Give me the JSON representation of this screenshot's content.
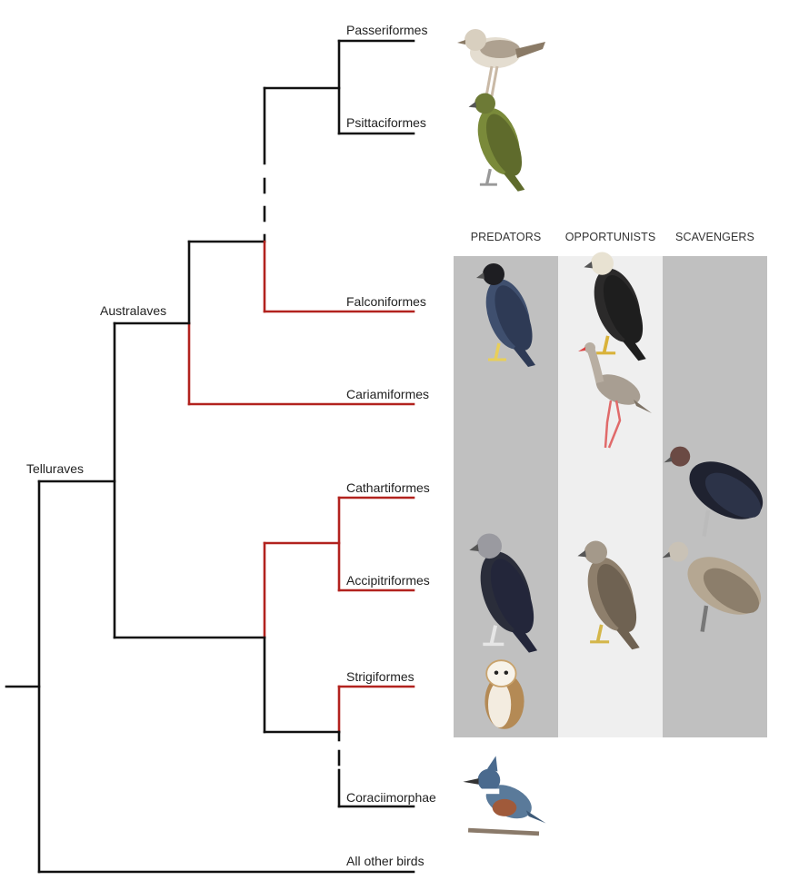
{
  "colors": {
    "default_branch": "#111111",
    "raptor_branch": "#b2221e",
    "column_dark": "#c0c0c0",
    "column_light": "#efefef"
  },
  "clades": {
    "telluraves": "Telluraves",
    "australaves": "Australaves"
  },
  "taxa": [
    "Passeriformes",
    "Psittaciformes",
    "Falconiformes",
    "Cariamiformes",
    "Cathartiformes",
    "Accipitriformes",
    "Strigiformes",
    "Coraciimorphae",
    "All other birds"
  ],
  "columns": [
    "PREDATORS",
    "OPPORTUNISTS",
    "SCAVENGERS"
  ],
  "birds": [
    {
      "name": "sparrow-illustration",
      "body": "#e4ddd0",
      "wing": "#8a7a66",
      "head": "#d8cfbf",
      "leg": "#c9b9a6",
      "column": "none"
    },
    {
      "name": "kea-parrot-illustration",
      "body": "#7a8a3a",
      "wing": "#5f6b2c",
      "head": "#6d7a36",
      "leg": "#999",
      "column": "none"
    },
    {
      "name": "peregrine-falcon-illustration",
      "body": "#3f4f6e",
      "wing": "#2e3a55",
      "head": "#1e1e22",
      "leg": "#e8cf5a",
      "column": "PREDATORS"
    },
    {
      "name": "caracara-illustration",
      "body": "#2b2a2a",
      "wing": "#1e1e1e",
      "head": "#e8e2d2",
      "leg": "#d9b23a",
      "column": "OPPORTUNISTS"
    },
    {
      "name": "seriema-illustration",
      "body": "#a89e92",
      "wing": "#7d7265",
      "head": "#b8aea2",
      "leg": "#e06a6a",
      "column": "OPPORTUNISTS"
    },
    {
      "name": "condor-illustration",
      "body": "#1f2230",
      "wing": "#2c3348",
      "head": "#6b4a44",
      "leg": "#bbb",
      "column": "SCAVENGERS"
    },
    {
      "name": "harpy-eagle-illustration",
      "body": "#2a2d3a",
      "wing": "#23263a",
      "head": "#9a9aa0",
      "leg": "#e6e6e6",
      "column": "PREDATORS"
    },
    {
      "name": "black-kite-illustration",
      "body": "#8e7f6c",
      "wing": "#6f6252",
      "head": "#a4998a",
      "leg": "#d4b64a",
      "column": "OPPORTUNISTS"
    },
    {
      "name": "griffon-vulture-illustration",
      "body": "#b5a792",
      "wing": "#8c7e6b",
      "head": "#c9c2b6",
      "leg": "#777",
      "column": "SCAVENGERS"
    },
    {
      "name": "barn-owl-illustration",
      "body": "#f3ece0",
      "wing": "#b48a55",
      "head": "#f7f3ea",
      "leg": "#ddd",
      "column": "PREDATORS"
    },
    {
      "name": "kingfisher-illustration",
      "body": "#5a7a9a",
      "wing": "#3e5a78",
      "head": "#4a6a8e",
      "leg": "#8a7a6a",
      "column": "none"
    }
  ]
}
